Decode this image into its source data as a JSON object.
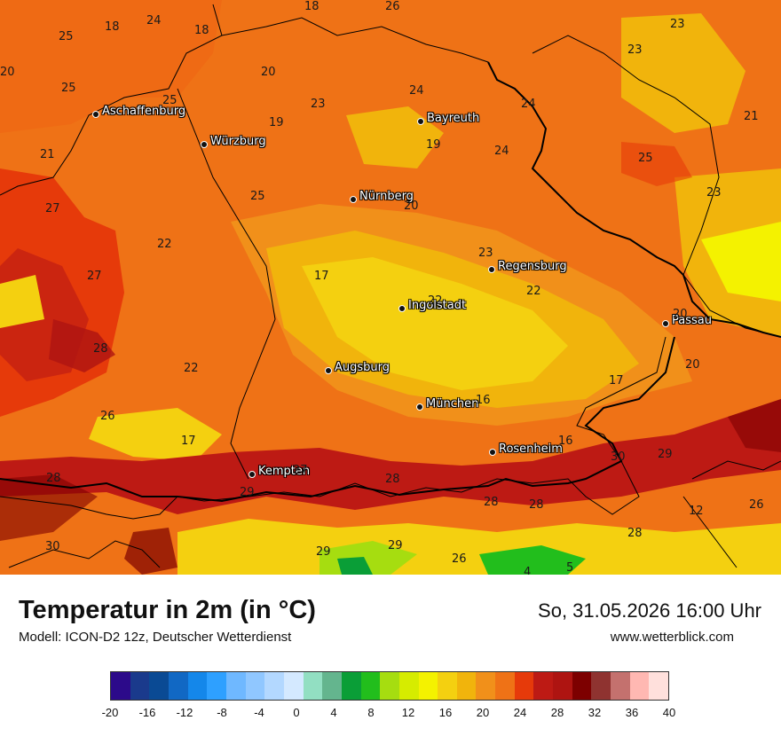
{
  "title": "Temperatur in 2m (in °C)",
  "model": "Modell: ICON-D2 12z, Deutscher Wetterdienst",
  "datetime": "So, 31.05.2026 16:00 Uhr",
  "website": "www.wetterblick.com",
  "cities": [
    "Aschaffenburg",
    "Würzburg",
    "Bayreuth",
    "Nürnberg",
    "Regensburg",
    "Ingolstadt",
    "Passau",
    "Augsburg",
    "München",
    "Rosenheim",
    "Kempten"
  ],
  "map_values": [
    "18",
    "24",
    "18",
    "18",
    "26",
    "25",
    "20",
    "20",
    "23",
    "23",
    "25",
    "25",
    "24",
    "24",
    "21",
    "19",
    "23",
    "19",
    "24",
    "21",
    "25",
    "25",
    "27",
    "20",
    "23",
    "22",
    "23",
    "27",
    "17",
    "22",
    "22",
    "20",
    "28",
    "22",
    "20",
    "17",
    "26",
    "16",
    "17",
    "16",
    "30",
    "29",
    "28",
    "27",
    "28",
    "29",
    "28",
    "12",
    "28",
    "30",
    "29",
    "29",
    "26",
    "28",
    "4",
    "5",
    "26"
  ],
  "legend": {
    "colors": [
      "#2c0a8a",
      "#1a3a8c",
      "#0a4a94",
      "#1168c4",
      "#1487ea",
      "#2ea0ff",
      "#6fb8ff",
      "#90c7ff",
      "#b3d8ff",
      "#d4e9ff",
      "#92dfc2",
      "#64b58e",
      "#0a9e37",
      "#22be1c",
      "#a6dd10",
      "#d6ec00",
      "#f4f200",
      "#f4d010",
      "#f1b40c",
      "#f1901a",
      "#ef7216",
      "#e63a0a",
      "#bd1a14",
      "#ae1411",
      "#7d0000",
      "#8f3330",
      "#c4716e",
      "#ffb8b2",
      "#ffe0dc"
    ],
    "ticks": [
      "-20",
      "-16",
      "-12",
      "-8",
      "-4",
      "0",
      "4",
      "8",
      "12",
      "16",
      "20",
      "24",
      "28",
      "32",
      "36",
      "40"
    ]
  }
}
